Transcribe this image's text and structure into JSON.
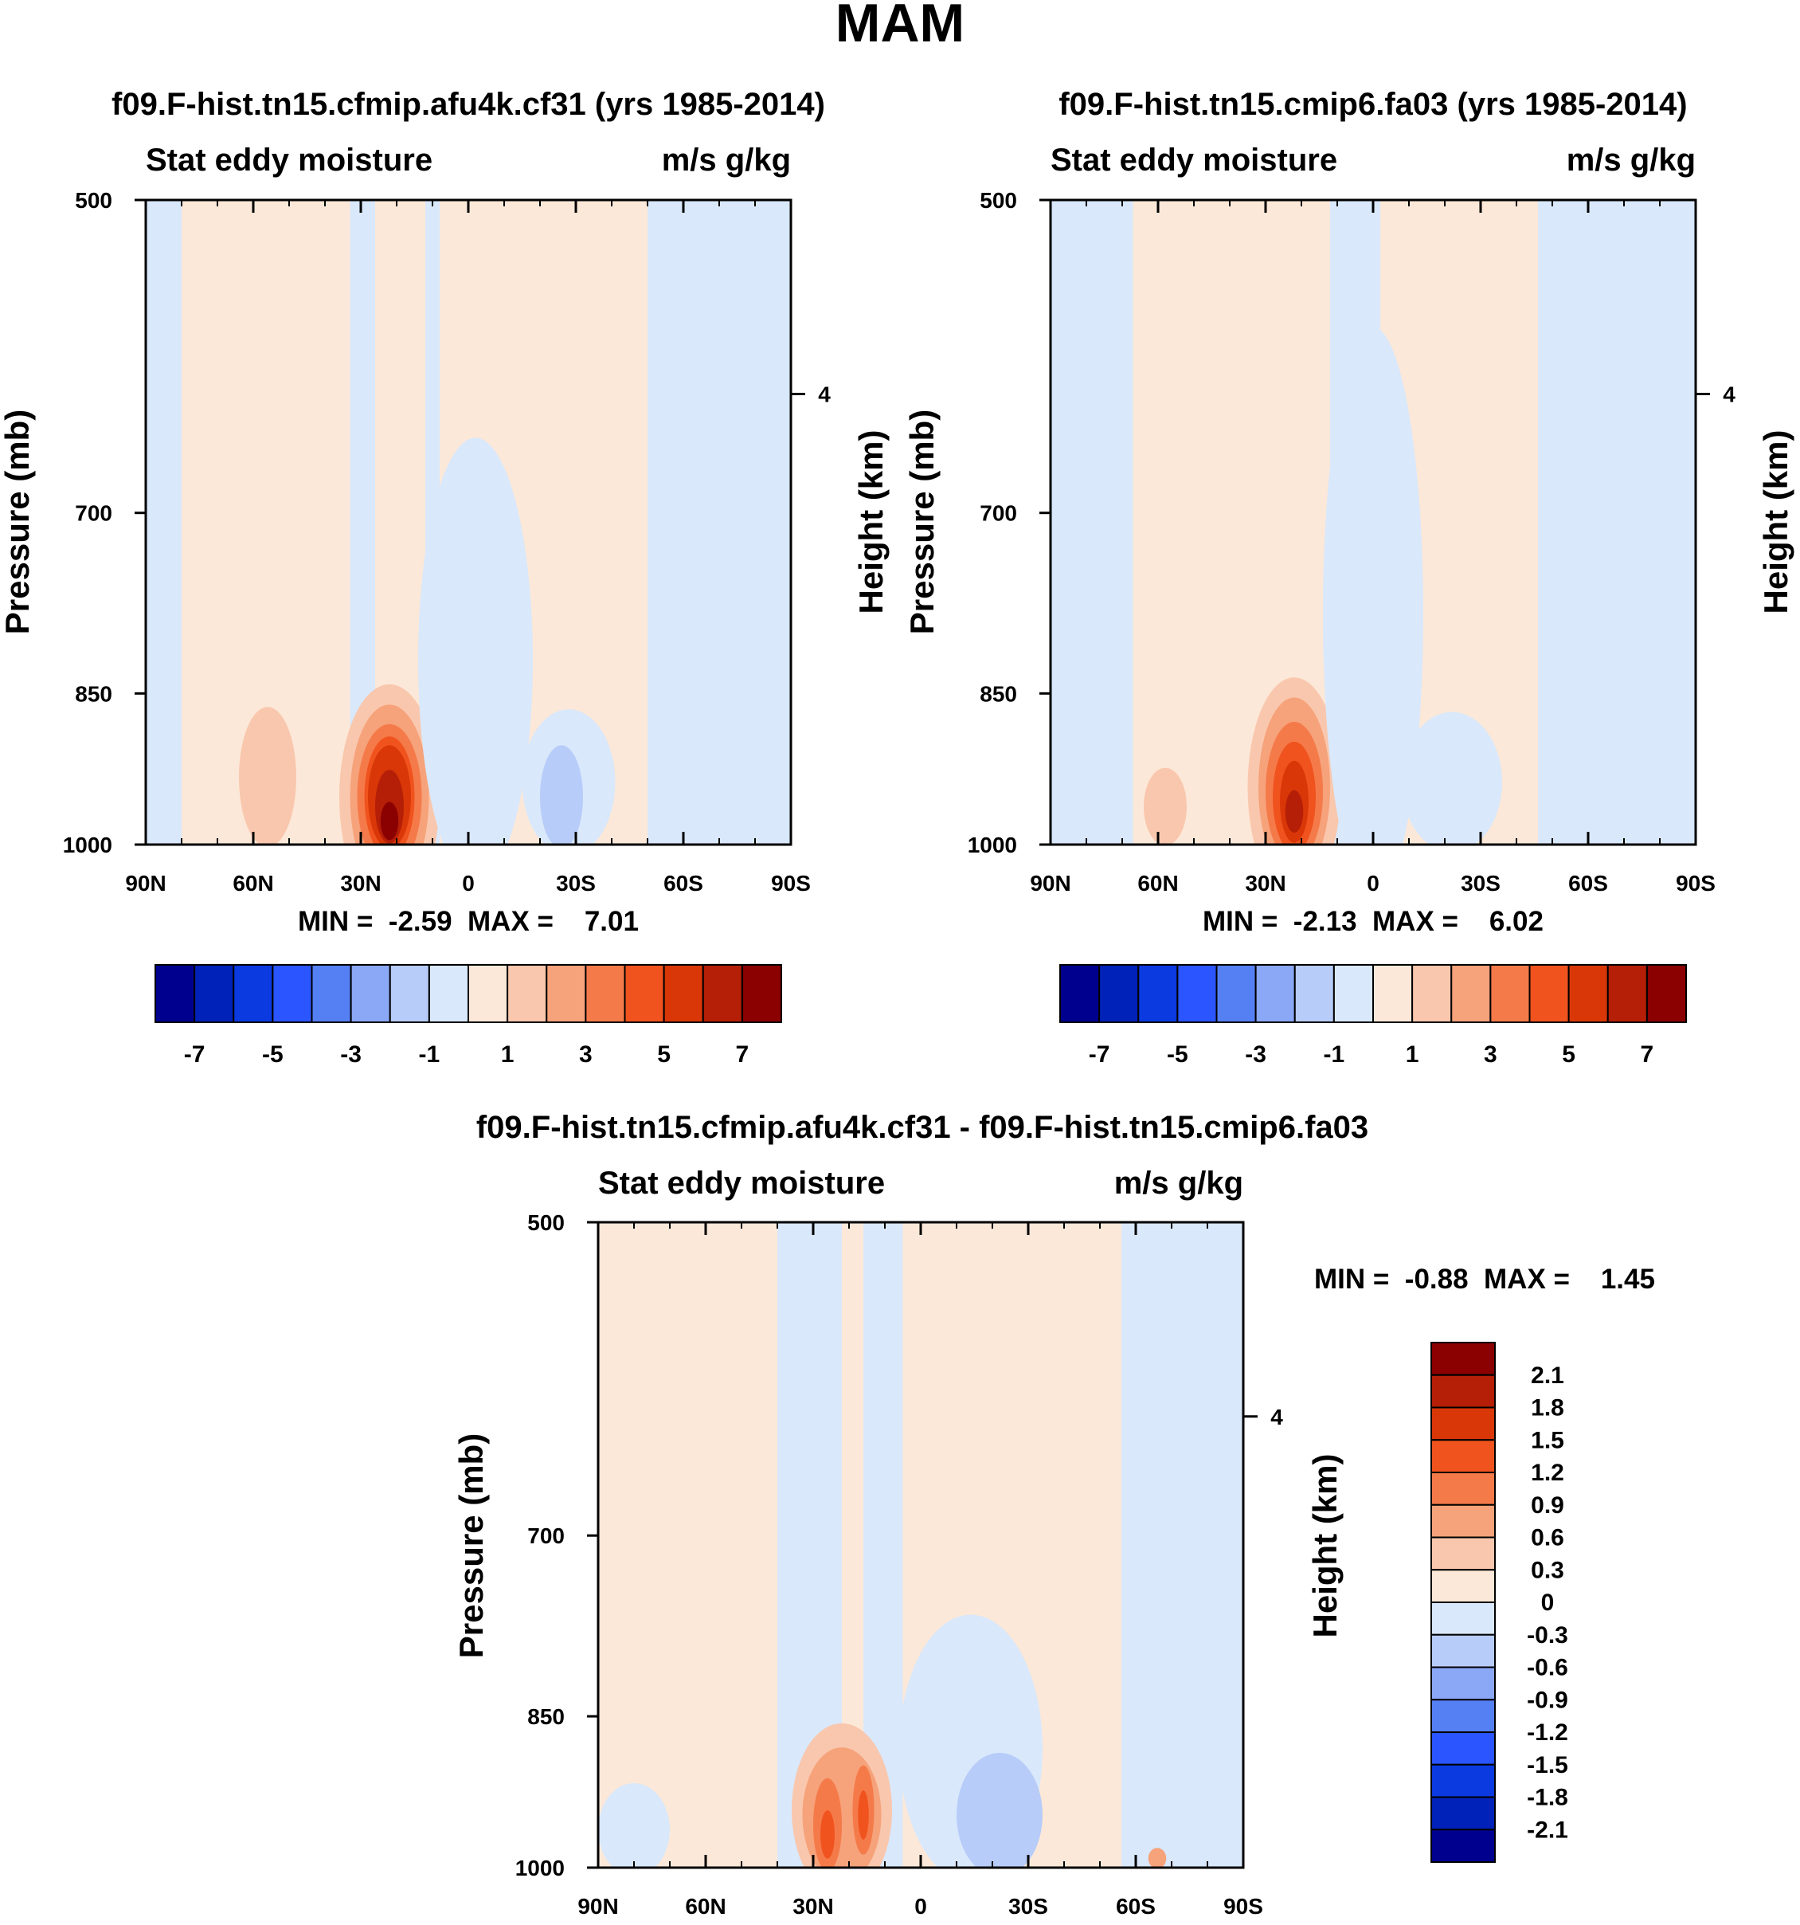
{
  "figure_title": "MAM",
  "colors": {
    "palette": [
      "#00008f",
      "#0022b8",
      "#0a3ae0",
      "#2a55ff",
      "#5580f4",
      "#8aa8f6",
      "#b7ccf9",
      "#d9e8fb",
      "#fce8d8",
      "#f9c7ad",
      "#f6a27a",
      "#f57a4a",
      "#f0531e",
      "#d93708",
      "#b51f07",
      "#8b0000"
    ]
  },
  "chart_data": [
    {
      "type": "heatmap",
      "id": "panel-a",
      "title": "f09.F-hist.tn15.cfmip.afu4k.cf31 (yrs 1985-2014)",
      "subtitle_left": "Stat eddy moisture",
      "subtitle_right": "m/s g/kg",
      "xlabel": "",
      "ylabel": "Pressure (mb)",
      "ylabel_right": "Height (km)",
      "xticks": [
        "90N",
        "60N",
        "30N",
        "0",
        "30S",
        "60S",
        "90S"
      ],
      "xticks_deg": [
        90,
        60,
        30,
        0,
        -30,
        -60,
        -90
      ],
      "yticks": [
        "500",
        "700",
        "850",
        "1000"
      ],
      "ytick_values": [
        500,
        700,
        850,
        1000
      ],
      "ylim": [
        1000,
        500
      ],
      "yticks_right": [
        "4"
      ],
      "ytick_right_value_mb": 616,
      "stats": "MIN =  -2.59  MAX =    7.01",
      "levels": [
        -7,
        -6,
        -5,
        -4,
        -3,
        -2,
        -1,
        0,
        1,
        2,
        3,
        4,
        5,
        6,
        7
      ],
      "colorbar_labels": [
        "-7",
        "-5",
        "-3",
        "-1",
        "1",
        "3",
        "5",
        "7"
      ],
      "base_regions": [
        {
          "lat_from": 90,
          "lat_to": 80,
          "sign": "neg"
        },
        {
          "lat_from": 80,
          "lat_to": 70,
          "sign": "pos"
        },
        {
          "lat_from": 70,
          "lat_to": 33,
          "sign": "pos"
        },
        {
          "lat_from": 33,
          "lat_to": 26,
          "sign": "neg"
        },
        {
          "lat_from": 26,
          "lat_to": 12,
          "sign": "pos"
        },
        {
          "lat_from": 12,
          "lat_to": 8,
          "sign": "neg"
        },
        {
          "lat_from": 8,
          "lat_to": -50,
          "sign": "pos"
        },
        {
          "lat_from": -50,
          "lat_to": -90,
          "sign": "neg"
        }
      ],
      "features": [
        {
          "lat": 22,
          "p": 950,
          "dlat": 14,
          "dp": 165,
          "value": 1
        },
        {
          "lat": 22,
          "p": 950,
          "dlat": 11,
          "dp": 130,
          "value": 2
        },
        {
          "lat": 22,
          "p": 950,
          "dlat": 9,
          "dp": 95,
          "value": 3
        },
        {
          "lat": 22,
          "p": 950,
          "dlat": 7,
          "dp": 72,
          "value": 4
        },
        {
          "lat": 22,
          "p": 950,
          "dlat": 6,
          "dp": 55,
          "value": 5
        },
        {
          "lat": 22,
          "p": 960,
          "dlat": 4,
          "dp": 38,
          "value": 6
        },
        {
          "lat": 22,
          "p": 975,
          "dlat": 2.5,
          "dp": 20,
          "value": 7
        },
        {
          "lat": 56,
          "p": 930,
          "dlat": 8,
          "dp": 70,
          "value": 1
        },
        {
          "lat": -2,
          "p": 820,
          "dlat": 16,
          "dp": 200,
          "value": -1
        },
        {
          "lat": -28,
          "p": 935,
          "dlat": 13,
          "dp": 80,
          "value": -1
        },
        {
          "lat": -26,
          "p": 950,
          "dlat": 6,
          "dp": 55,
          "value": -2
        },
        {
          "lat": -70,
          "p": 955,
          "dlat": 5,
          "dp": 45,
          "value": -1
        }
      ]
    },
    {
      "type": "heatmap",
      "id": "panel-b",
      "title": "f09.F-hist.tn15.cmip6.fa03 (yrs 1985-2014)",
      "subtitle_left": "Stat eddy moisture",
      "subtitle_right": "m/s g/kg",
      "xlabel": "",
      "ylabel": "Pressure (mb)",
      "ylabel_right": "Height (km)",
      "xticks": [
        "90N",
        "60N",
        "30N",
        "0",
        "30S",
        "60S",
        "90S"
      ],
      "xticks_deg": [
        90,
        60,
        30,
        0,
        -30,
        -60,
        -90
      ],
      "yticks": [
        "500",
        "700",
        "850",
        "1000"
      ],
      "ytick_values": [
        500,
        700,
        850,
        1000
      ],
      "ylim": [
        1000,
        500
      ],
      "yticks_right": [
        "4"
      ],
      "ytick_right_value_mb": 616,
      "stats": "MIN =  -2.13  MAX =    6.02",
      "levels": [
        -7,
        -6,
        -5,
        -4,
        -3,
        -2,
        -1,
        0,
        1,
        2,
        3,
        4,
        5,
        6,
        7
      ],
      "colorbar_labels": [
        "-7",
        "-5",
        "-3",
        "-1",
        "1",
        "3",
        "5",
        "7"
      ],
      "base_regions": [
        {
          "lat_from": 90,
          "lat_to": 67,
          "sign": "neg"
        },
        {
          "lat_from": 67,
          "lat_to": 26,
          "sign": "pos"
        },
        {
          "lat_from": 26,
          "lat_to": 12,
          "sign": "pos"
        },
        {
          "lat_from": 12,
          "lat_to": -2,
          "sign": "neg"
        },
        {
          "lat_from": -2,
          "lat_to": -46,
          "sign": "pos"
        },
        {
          "lat_from": -46,
          "lat_to": -90,
          "sign": "neg"
        }
      ],
      "features": [
        {
          "lat": 22,
          "p": 940,
          "dlat": 13,
          "dp": 150,
          "value": 1
        },
        {
          "lat": 22,
          "p": 940,
          "dlat": 10,
          "dp": 115,
          "value": 2
        },
        {
          "lat": 22,
          "p": 945,
          "dlat": 8,
          "dp": 85,
          "value": 3
        },
        {
          "lat": 22,
          "p": 950,
          "dlat": 6,
          "dp": 62,
          "value": 4
        },
        {
          "lat": 22,
          "p": 955,
          "dlat": 4,
          "dp": 42,
          "value": 5
        },
        {
          "lat": 22,
          "p": 965,
          "dlat": 2.5,
          "dp": 22,
          "value": 6
        },
        {
          "lat": 58,
          "p": 960,
          "dlat": 6,
          "dp": 40,
          "value": 1
        },
        {
          "lat": 0,
          "p": 780,
          "dlat": 14,
          "dp": 240,
          "value": -1
        },
        {
          "lat": -22,
          "p": 935,
          "dlat": 14,
          "dp": 75,
          "value": -1
        },
        {
          "lat": -72,
          "p": 960,
          "dlat": 4,
          "dp": 40,
          "value": -1
        }
      ]
    },
    {
      "type": "heatmap",
      "id": "panel-c",
      "title": "f09.F-hist.tn15.cfmip.afu4k.cf31 - f09.F-hist.tn15.cmip6.fa03",
      "subtitle_left": "Stat eddy moisture",
      "subtitle_right": "m/s g/kg",
      "xlabel": "",
      "ylabel": "Pressure (mb)",
      "ylabel_right": "Height (km)",
      "xticks": [
        "90N",
        "60N",
        "30N",
        "0",
        "30S",
        "60S",
        "90S"
      ],
      "xticks_deg": [
        90,
        60,
        30,
        0,
        -30,
        -60,
        -90
      ],
      "yticks": [
        "500",
        "700",
        "850",
        "1000"
      ],
      "ytick_values": [
        500,
        700,
        850,
        1000
      ],
      "ylim": [
        1000,
        500
      ],
      "yticks_right": [
        "4"
      ],
      "ytick_right_value_mb": 616,
      "stats": "MIN =  -0.88  MAX =    1.45",
      "levels": [
        -2.1,
        -1.8,
        -1.5,
        -1.2,
        -0.9,
        -0.6,
        -0.3,
        0,
        0.3,
        0.6,
        0.9,
        1.2,
        1.5,
        1.8,
        2.1
      ],
      "colorbar_labels": [
        "2.1",
        "1.8",
        "1.5",
        "1.2",
        "0.9",
        "0.6",
        "0.3",
        "0",
        "-0.3",
        "-0.6",
        "-0.9",
        "-1.2",
        "-1.5",
        "-1.8",
        "-2.1"
      ],
      "base_regions": [
        {
          "lat_from": 90,
          "lat_to": 40,
          "sign": "pos"
        },
        {
          "lat_from": 40,
          "lat_to": 22,
          "sign": "neg"
        },
        {
          "lat_from": 22,
          "lat_to": 16,
          "sign": "pos"
        },
        {
          "lat_from": 16,
          "lat_to": 5,
          "sign": "neg"
        },
        {
          "lat_from": 5,
          "lat_to": -56,
          "sign": "pos"
        },
        {
          "lat_from": -56,
          "lat_to": -90,
          "sign": "neg"
        }
      ],
      "features": [
        {
          "lat": 22,
          "p": 940,
          "dlat": 14,
          "dp": 110,
          "value": 0.3
        },
        {
          "lat": 22,
          "p": 945,
          "dlat": 11,
          "dp": 80,
          "value": 0.6
        },
        {
          "lat": 26,
          "p": 955,
          "dlat": 4,
          "dp": 50,
          "value": 0.9
        },
        {
          "lat": 16,
          "p": 940,
          "dlat": 3,
          "dp": 45,
          "value": 0.9
        },
        {
          "lat": 26,
          "p": 965,
          "dlat": 2,
          "dp": 25,
          "value": 1.2
        },
        {
          "lat": 16,
          "p": 945,
          "dlat": 1.5,
          "dp": 25,
          "value": 1.2
        },
        {
          "lat": 80,
          "p": 960,
          "dlat": 10,
          "dp": 55,
          "value": -0.3
        },
        {
          "lat": -14,
          "p": 880,
          "dlat": 20,
          "dp": 130,
          "value": -0.3
        },
        {
          "lat": -22,
          "p": 945,
          "dlat": 12,
          "dp": 70,
          "value": -0.6
        },
        {
          "lat": -66,
          "p": 990,
          "dlat": 2.5,
          "dp": 12,
          "value": 0.6
        }
      ]
    }
  ]
}
